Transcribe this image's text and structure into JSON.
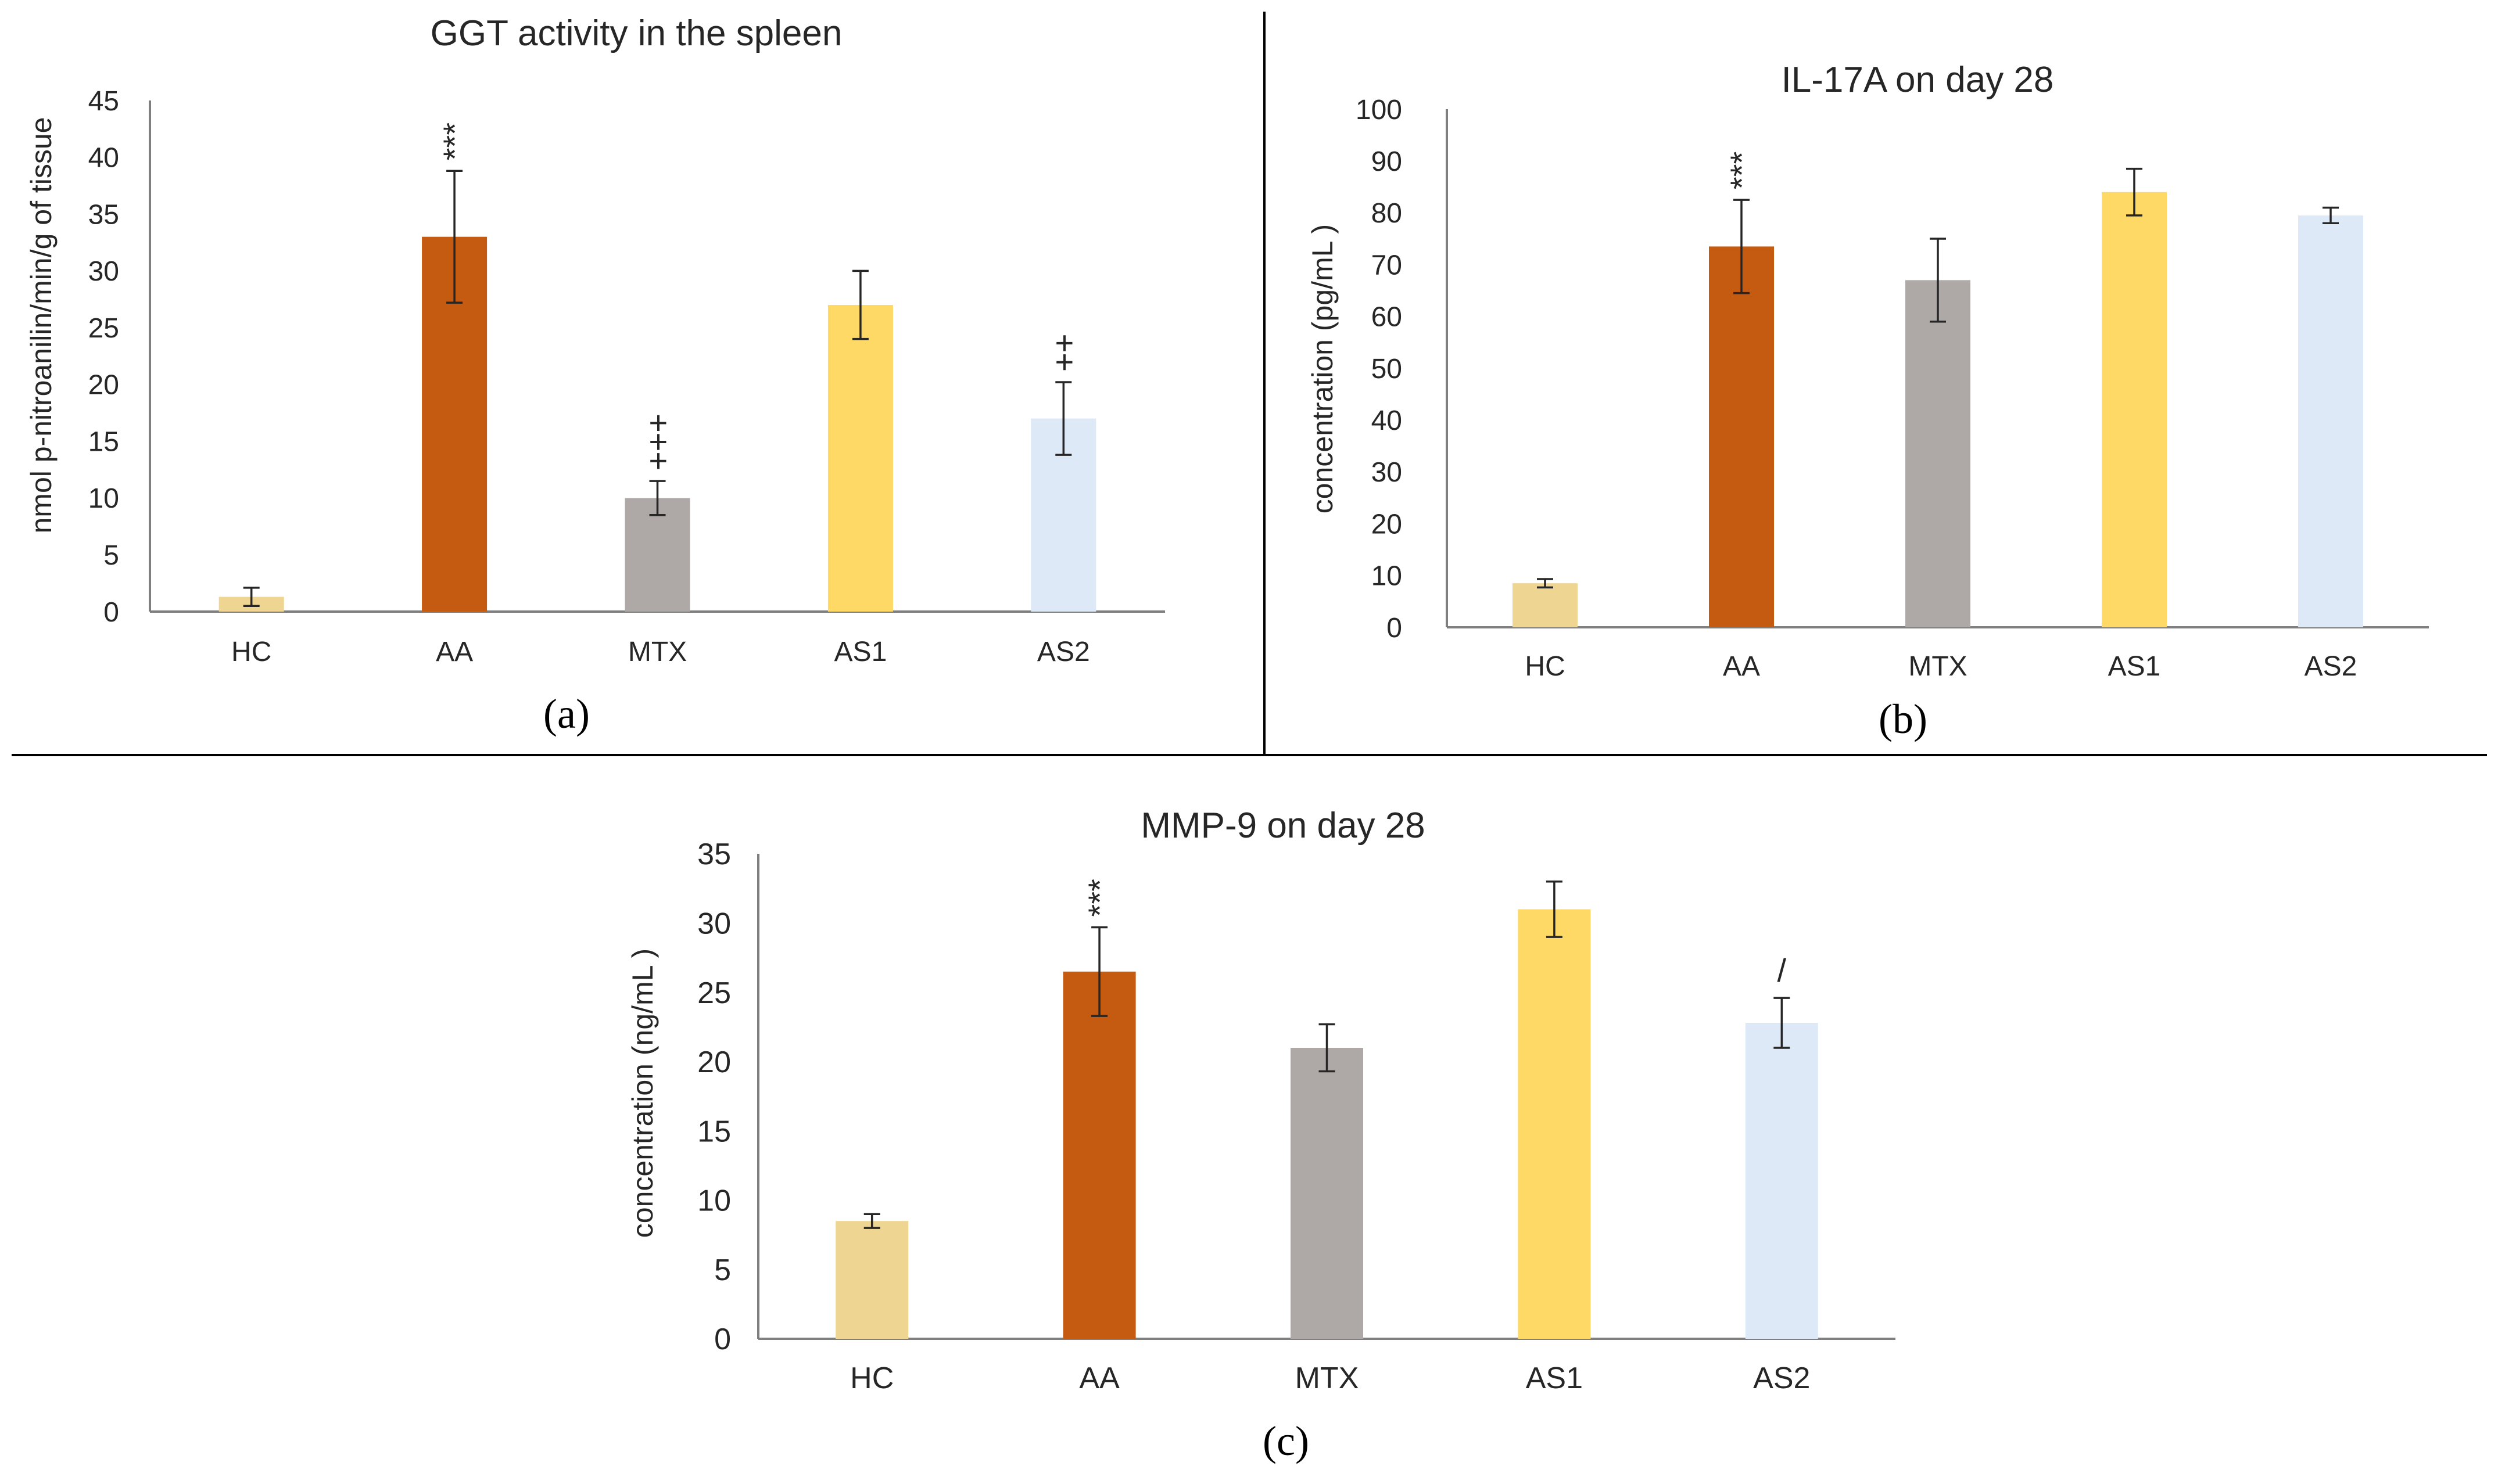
{
  "chart_data": [
    {
      "type": "bar",
      "title": "GGT activity in the spleen",
      "panel_label": "(a)",
      "xlabel": "",
      "ylabel": "nmol p-nitroanilin/min/g of tissue",
      "ylim": [
        0,
        45
      ],
      "ytick_step": 5,
      "categories": [
        "HC",
        "AA",
        "MTX",
        "AS1",
        "AS2"
      ],
      "values": [
        1.3,
        33.0,
        10.0,
        27.0,
        17.0
      ],
      "errors": [
        0.8,
        5.8,
        1.5,
        3.0,
        3.2
      ],
      "annotations": [
        "",
        "***",
        "+++",
        "",
        "++"
      ],
      "colors": [
        "#eed592",
        "#c55a11",
        "#aea8a6",
        "#ffd966",
        "#dde9f6"
      ]
    },
    {
      "type": "bar",
      "title": "IL-17A on day 28",
      "panel_label": "(b)",
      "xlabel": "",
      "ylabel": "concentration (pg/mL )",
      "ylim": [
        0,
        100
      ],
      "ytick_step": 10,
      "categories": [
        "HC",
        "AA",
        "MTX",
        "AS1",
        "AS2"
      ],
      "values": [
        8.5,
        73.5,
        67.0,
        84.0,
        79.5
      ],
      "errors": [
        0.8,
        9.0,
        8.0,
        4.5,
        1.5
      ],
      "annotations": [
        "",
        "***",
        "",
        "",
        ""
      ],
      "colors": [
        "#eed592",
        "#c55a11",
        "#aea8a6",
        "#ffd966",
        "#dde9f6"
      ]
    },
    {
      "type": "bar",
      "title": "MMP-9 on day 28",
      "panel_label": "(c)",
      "xlabel": "",
      "ylabel": "concentration (ng/mL )",
      "ylim": [
        0,
        35
      ],
      "ytick_step": 5,
      "categories": [
        "HC",
        "AA",
        "MTX",
        "AS1",
        "AS2"
      ],
      "values": [
        8.5,
        26.5,
        21.0,
        31.0,
        22.8
      ],
      "errors": [
        0.5,
        3.2,
        1.7,
        2.0,
        1.8
      ],
      "annotations": [
        "",
        "***",
        "",
        "",
        "/"
      ],
      "colors": [
        "#eed592",
        "#c55a11",
        "#aea8a6",
        "#ffd966",
        "#dde9f6"
      ]
    }
  ]
}
